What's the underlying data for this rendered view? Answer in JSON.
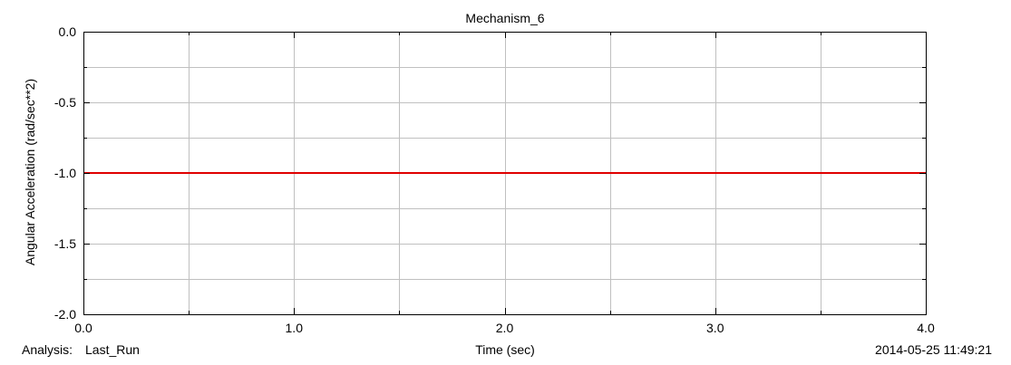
{
  "chart_data": {
    "type": "line",
    "title": "Mechanism_6",
    "xlabel": "Time (sec)",
    "ylabel": "Angular Acceleration (rad/sec**2)",
    "xlim": [
      0.0,
      4.0
    ],
    "ylim": [
      -2.0,
      0.0
    ],
    "x_ticks": [
      "0.0",
      "1.0",
      "2.0",
      "3.0",
      "4.0"
    ],
    "y_ticks": [
      "0.0",
      "-0.5",
      "-1.0",
      "-1.5",
      "-2.0"
    ],
    "grid": true,
    "series": [
      {
        "color": "#e00000",
        "x": [
          0.0,
          4.0
        ],
        "y": [
          -1.0,
          -1.0
        ]
      }
    ]
  },
  "footer": {
    "analysis_label": "Analysis:",
    "analysis_name": "Last_Run",
    "timestamp": "2014-05-25 11:49:21"
  },
  "colors": {
    "grid": "#c0c0c0",
    "axes": "#000000",
    "background": "#ffffff"
  }
}
